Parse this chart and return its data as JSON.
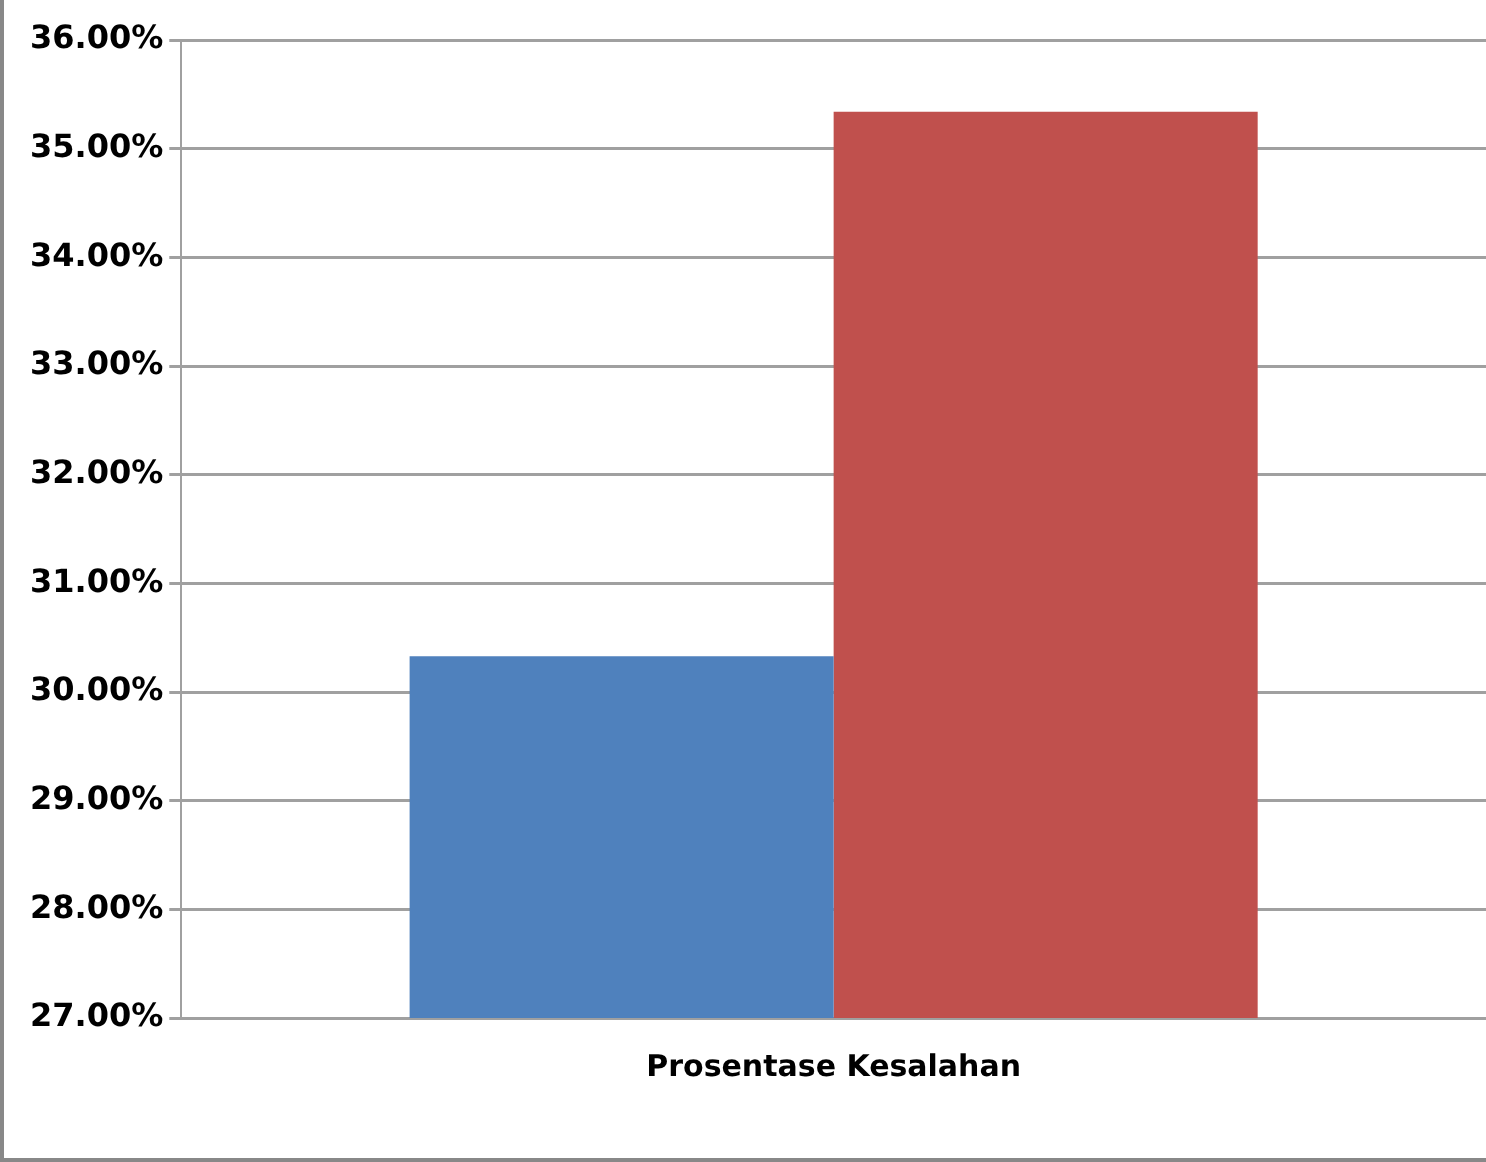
{
  "chart_data": {
    "type": "bar",
    "categories": [
      "Prosentase Kesalahan"
    ],
    "series": [
      {
        "color": "#4f81bd",
        "values": [
          30.33
        ]
      },
      {
        "color": "#c0504d",
        "values": [
          35.34
        ]
      }
    ],
    "ylim": [
      27,
      36
    ],
    "yticks": [
      {
        "value": 27,
        "label": "27.00%"
      },
      {
        "value": 28,
        "label": "28.00%"
      },
      {
        "value": 29,
        "label": "29.00%"
      },
      {
        "value": 30,
        "label": "30.00%"
      },
      {
        "value": 31,
        "label": "31.00%"
      },
      {
        "value": 32,
        "label": "32.00%"
      },
      {
        "value": 33,
        "label": "33.00%"
      },
      {
        "value": 34,
        "label": "34.00%"
      },
      {
        "value": 35,
        "label": "35.00%"
      },
      {
        "value": 36,
        "label": "36.00%"
      }
    ],
    "grid": "y",
    "legend": false
  }
}
